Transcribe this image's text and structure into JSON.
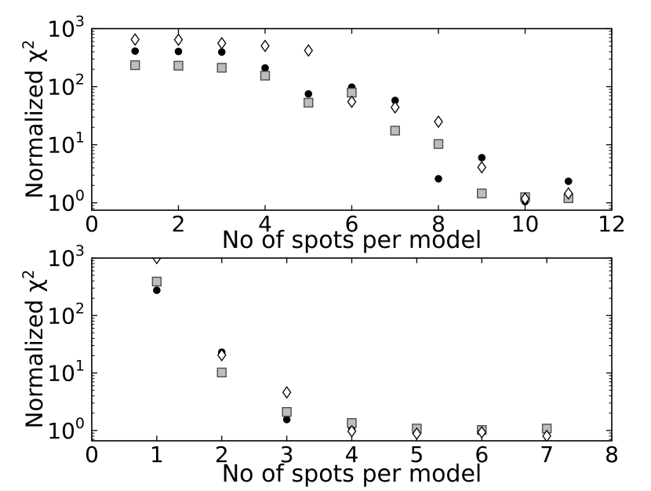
{
  "figure": {
    "background": "#ffffff",
    "text_color": "#000000",
    "frame_color": "#000000"
  },
  "chart_data": [
    {
      "type": "scatter",
      "panel": "top",
      "title": "",
      "xlabel": "No of spots per model",
      "ylabel": {
        "text": "Normalized χ",
        "sup": "2"
      },
      "xlim": [
        0,
        12
      ],
      "ylim": [
        0.75,
        1000
      ],
      "ylim_exp": [
        -0.127,
        3
      ],
      "yscale": "log",
      "grid": false,
      "legend": "none",
      "xticks": [
        0,
        2,
        4,
        6,
        8,
        10,
        12
      ],
      "ytick_base": "10",
      "ytick_exponents": [
        0,
        1,
        2,
        3
      ],
      "x": [
        1,
        2,
        3,
        4,
        5,
        6,
        7,
        8,
        9,
        10,
        11
      ],
      "series": [
        {
          "name": "filled-circle",
          "marker": "circle",
          "color": "#000000",
          "edge": "#000000",
          "values": [
            410,
            405,
            395,
            210,
            75,
            98,
            58,
            2.6,
            6.0,
            1.05,
            2.35
          ]
        },
        {
          "name": "gray-square",
          "marker": "square",
          "color": "#bdbdbd",
          "edge": "#4d4d4d",
          "values": [
            235,
            230,
            212,
            155,
            53,
            79,
            17.5,
            10.3,
            1.45,
            1.25,
            1.2
          ]
        },
        {
          "name": "open-diamond",
          "marker": "diamond",
          "color": "#ffffff",
          "edge": "#000000",
          "values": [
            650,
            645,
            560,
            505,
            420,
            55,
            44,
            25,
            4.1,
            1.18,
            1.45
          ]
        }
      ]
    },
    {
      "type": "scatter",
      "panel": "bottom",
      "title": "",
      "xlabel": "No of spots per model",
      "ylabel": {
        "text": "Normalized χ",
        "sup": "2"
      },
      "xlim": [
        0,
        8
      ],
      "ylim": [
        0.66,
        1000
      ],
      "ylim_exp": [
        -0.18,
        3
      ],
      "yscale": "log",
      "grid": false,
      "legend": "none",
      "xticks": [
        0,
        1,
        2,
        3,
        4,
        5,
        6,
        7,
        8
      ],
      "ytick_base": "10",
      "ytick_exponents": [
        0,
        1,
        2,
        3
      ],
      "x": [
        1,
        2,
        3,
        4,
        5,
        6,
        7
      ],
      "series": [
        {
          "name": "filled-circle",
          "marker": "circle",
          "color": "#000000",
          "edge": "#000000",
          "values": [
            275,
            23,
            1.55,
            1.1,
            1.0,
            0.98,
            1.0
          ]
        },
        {
          "name": "gray-square",
          "marker": "square",
          "color": "#bdbdbd",
          "edge": "#4d4d4d",
          "values": [
            390,
            10.2,
            2.1,
            1.35,
            1.08,
            1.02,
            1.08
          ]
        },
        {
          "name": "open-diamond",
          "marker": "diamond",
          "color": "#ffffff",
          "edge": "#000000",
          "values": [
            1000,
            20.5,
            4.6,
            0.97,
            0.88,
            0.93,
            0.8
          ]
        }
      ]
    }
  ]
}
